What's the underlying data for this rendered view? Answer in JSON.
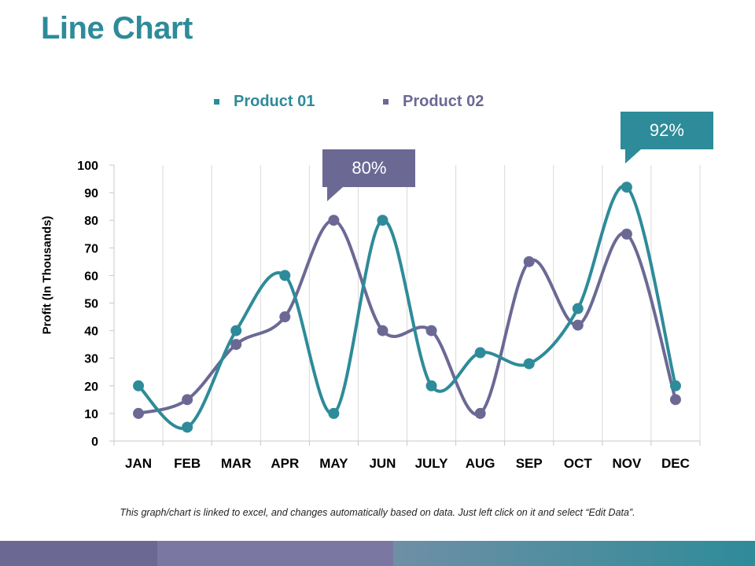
{
  "page": {
    "title": "Line Chart",
    "note": "This graph/chart is linked to excel, and changes automatically based on data. Just left click on it and select “Edit Data”."
  },
  "colors": {
    "title": "#2e8b99",
    "product01": "#2e8b99",
    "product02": "#6b6994",
    "grid": "#d9d9d9"
  },
  "callouts": [
    {
      "label": "80%",
      "series": "Product 02",
      "category": "MAY",
      "color": "#6b6994"
    },
    {
      "label": "92%",
      "series": "Product 01",
      "category": "NOV",
      "color": "#2e8b99"
    }
  ],
  "chart_data": {
    "type": "line",
    "title": "Line Chart",
    "xlabel": "",
    "ylabel": "Profit (In Thousands)",
    "ylim": [
      0,
      100
    ],
    "yticks": [
      0,
      10,
      20,
      30,
      40,
      50,
      60,
      70,
      80,
      90,
      100
    ],
    "grid": "vertical",
    "legend": "top-center",
    "smooth": true,
    "categories": [
      "JAN",
      "FEB",
      "MAR",
      "APR",
      "MAY",
      "JUN",
      "JULY",
      "AUG",
      "SEP",
      "OCT",
      "NOV",
      "DEC"
    ],
    "series": [
      {
        "name": "Product 01",
        "color": "#2e8b99",
        "values": [
          20,
          5,
          40,
          60,
          10,
          80,
          20,
          32,
          28,
          48,
          92,
          20
        ]
      },
      {
        "name": "Product 02",
        "color": "#6b6994",
        "values": [
          10,
          15,
          35,
          45,
          80,
          40,
          40,
          10,
          65,
          42,
          75,
          15
        ]
      }
    ]
  }
}
